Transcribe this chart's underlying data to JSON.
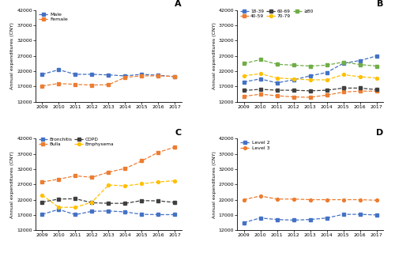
{
  "years": [
    2009,
    2010,
    2011,
    2012,
    2013,
    2014,
    2015,
    2016,
    2017
  ],
  "A": {
    "Male": [
      21000,
      22500,
      21000,
      21000,
      20800,
      20500,
      21000,
      20700,
      20200
    ],
    "Female": [
      17200,
      18000,
      17700,
      17500,
      17600,
      20000,
      20500,
      20500,
      20300
    ]
  },
  "B": {
    "18-39": [
      18500,
      19500,
      18200,
      19200,
      20500,
      21600,
      24600,
      25500,
      27000
    ],
    "40-59": [
      13800,
      14500,
      14000,
      13600,
      13500,
      14200,
      15200,
      15500,
      15500
    ],
    "60-69": [
      15700,
      16100,
      15800,
      15800,
      15600,
      15800,
      16500,
      16500,
      16000
    ],
    "70-79": [
      20500,
      21200,
      19800,
      19500,
      19200,
      19200,
      20900,
      20200,
      19800
    ],
    ">=80": [
      24500,
      25800,
      24300,
      24000,
      23700,
      24000,
      25000,
      24200,
      23700
    ]
  },
  "C": {
    "Bronchitis": [
      17200,
      18800,
      17100,
      18200,
      18300,
      18000,
      17200,
      17100,
      17100
    ],
    "Bulla": [
      27800,
      28700,
      29800,
      29300,
      31000,
      32200,
      34700,
      37500,
      39200
    ],
    "COPD": [
      21200,
      22200,
      22300,
      21000,
      20800,
      20800,
      21700,
      21600,
      21100
    ],
    "Emphysema": [
      23500,
      19500,
      19500,
      21200,
      26800,
      26500,
      27200,
      27800,
      28200
    ]
  },
  "D": {
    "Level 2": [
      14500,
      16000,
      15500,
      15300,
      15500,
      16000,
      17200,
      17200,
      17000
    ],
    "Level 3": [
      22000,
      23200,
      22200,
      22200,
      22000,
      22000,
      22000,
      22000,
      21800
    ]
  },
  "ylim": [
    12000,
    42000
  ],
  "yticks": [
    12000,
    17000,
    22000,
    27000,
    32000,
    37000,
    42000
  ],
  "colors": {
    "blue": "#4472C4",
    "orange": "#ED7D31",
    "black": "#404040",
    "yellow": "#FFC000",
    "green": "#70AD47"
  }
}
